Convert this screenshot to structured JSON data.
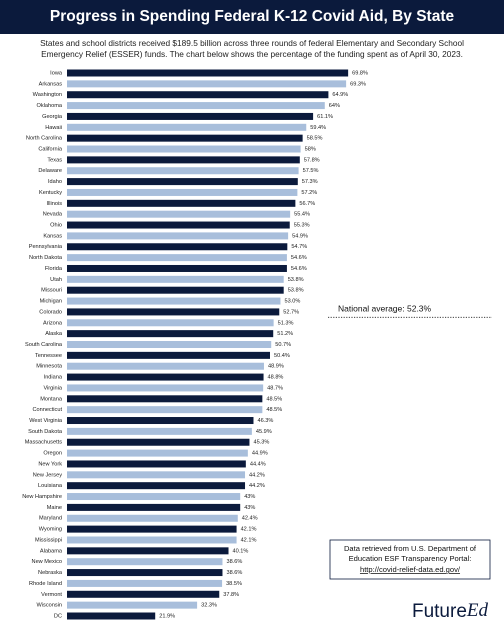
{
  "chart_data": {
    "type": "bar",
    "orientation": "horizontal",
    "title": "Progress in Spending Federal K-12 Covid Aid, By State",
    "subtitle": [
      "States and school districts received $189.5 billion across three rounds of federal Elementary and Secondary School",
      "Emergency Relief (ESSER) funds. The chart below shows the percentage of the funding spent as of April 30, 2023."
    ],
    "categories": [
      "Iowa",
      "Arkansas",
      "Washington",
      "Oklahoma",
      "Georgia",
      "Hawaii",
      "North Carolina",
      "California",
      "Texas",
      "Delaware",
      "Idaho",
      "Kentucky",
      "Illinois",
      "Nevada",
      "Ohio",
      "Kansas",
      "Pennsylvania",
      "North Dakota",
      "Florida",
      "Utah",
      "Missouri",
      "Michigan",
      "Colorado",
      "Arizona",
      "Alaska",
      "South Carolina",
      "Tennessee",
      "Minnesota",
      "Indiana",
      "Virginia",
      "Montana",
      "Connecticut",
      "West Virginia",
      "South Dakota",
      "Massachusetts",
      "Oregon",
      "New York",
      "New Jersey",
      "Louisiana",
      "New Hampshire",
      "Maine",
      "Maryland",
      "Wyoming",
      "Mississippi",
      "Alabama",
      "New Mexico",
      "Nebraska",
      "Rhode Island",
      "Vermont",
      "Wisconsin",
      "DC"
    ],
    "values": [
      69.8,
      69.3,
      64.9,
      64,
      61.1,
      59.4,
      58.5,
      58,
      57.8,
      57.5,
      57.3,
      57.2,
      56.7,
      55.4,
      55.3,
      54.9,
      54.7,
      54.6,
      54.6,
      53.8,
      53.8,
      53.0,
      52.7,
      51.3,
      51.2,
      50.7,
      50.4,
      48.9,
      48.8,
      48.7,
      48.5,
      48.5,
      46.3,
      45.9,
      45.3,
      44.9,
      44.4,
      44.2,
      44.2,
      43,
      43,
      42.4,
      42.1,
      42.1,
      40.1,
      38.6,
      38.6,
      38.5,
      37.8,
      32.3,
      21.9
    ],
    "value_labels": [
      "69.8%",
      "69.3%",
      "64.9%",
      "64%",
      "61.1%",
      "59.4%",
      "58.5%",
      "58%",
      "57.8%",
      "57.5%",
      "57.3%",
      "57.2%",
      "56.7%",
      "55.4%",
      "55.3%",
      "54.9%",
      "54.7%",
      "54.6%",
      "54.6%",
      "53.8%",
      "53.8%",
      "53.0%",
      "52.7%",
      "51.3%",
      "51.2%",
      "50.7%",
      "50.4%",
      "48.9%",
      "48.8%",
      "48.7%",
      "48.5%",
      "48.5%",
      "46.3%",
      "45.9%",
      "45.3%",
      "44.9%",
      "44.4%",
      "44.2%",
      "44.2%",
      "43%",
      "43%",
      "42.4%",
      "42.1%",
      "42.1%",
      "40.1%",
      "38.6%",
      "38.6%",
      "38.5%",
      "37.8%",
      "32.3%",
      "21.9%"
    ],
    "colors": [
      "#0b1a3c",
      "#a8bedb"
    ],
    "xlim": [
      0,
      72
    ],
    "reference_line": {
      "value": 52.3,
      "label": "National average: 52.3%"
    },
    "source_note": [
      "Data retrieved from U.S. Department of",
      "Education ESF Transparency Portal:",
      "http://covid-relief-data.ed.gov/"
    ],
    "logo": [
      "Future",
      "Ed"
    ]
  }
}
